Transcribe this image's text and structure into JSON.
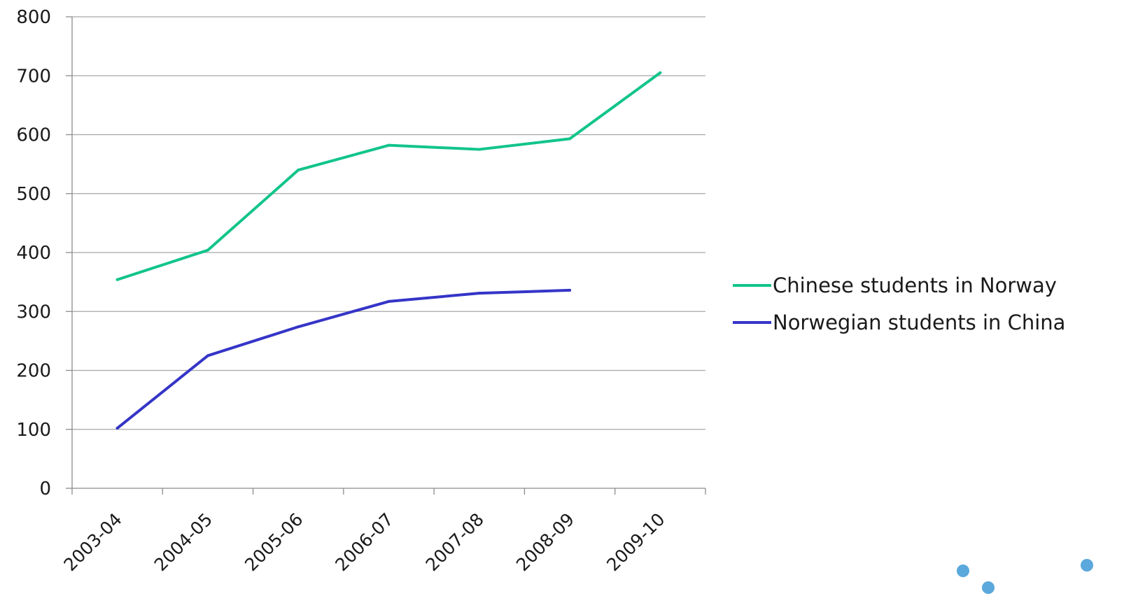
{
  "chart_data": {
    "type": "line",
    "title": "",
    "xlabel": "",
    "ylabel": "",
    "categories": [
      "2003-04",
      "2004-05",
      "2005-06",
      "2006-07",
      "2007-08",
      "2008-09",
      "2009-10"
    ],
    "ylim": [
      0,
      800
    ],
    "yticks": [
      0,
      100,
      200,
      300,
      400,
      500,
      600,
      700,
      800
    ],
    "grid": "horizontal",
    "legend_position": "right",
    "series": [
      {
        "name": "Chinese students in Norway",
        "color": "#12c48b",
        "values": [
          354,
          404,
          540,
          582,
          575,
          593,
          705
        ]
      },
      {
        "name": "Norwegian students in China",
        "color": "#3535c8",
        "values": [
          102,
          225,
          274,
          317,
          331,
          336,
          null
        ]
      }
    ]
  },
  "decoration": {
    "dot_color": "#5aa8dc"
  }
}
